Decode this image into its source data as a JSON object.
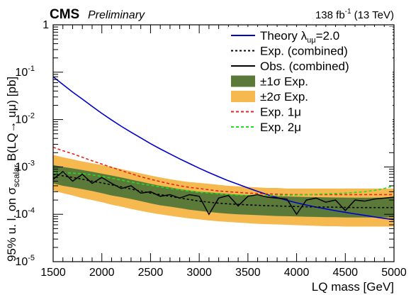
{
  "chart_data": {
    "type": "line",
    "header": {
      "experiment": "CMS",
      "status": "Preliminary",
      "lumi_value": "138 fb",
      "lumi_exp": "-1",
      "lumi_energy": "(13 TeV)"
    },
    "xlabel": "LQ mass [GeV]",
    "ylabel": "95% u. l. on σ",
    "ylabel_sub": "scalar",
    "ylabel_tail": " B(LQ→ uμ) [pb]",
    "xlim": [
      1500,
      5000
    ],
    "ylim": [
      1e-05,
      1
    ],
    "yscale": "log",
    "x_ticks": [
      "1500",
      "2000",
      "2500",
      "3000",
      "3500",
      "4000",
      "4500",
      "5000"
    ],
    "y_ticks": [
      {
        "base": "10",
        "exp": "-5"
      },
      {
        "base": "10",
        "exp": "-4"
      },
      {
        "base": "10",
        "exp": "-3"
      },
      {
        "base": "10",
        "exp": "-2"
      },
      {
        "base": "10",
        "exp": "-1"
      },
      {
        "base": "1",
        "exp": ""
      }
    ],
    "legend": {
      "position": "top-right",
      "entries": [
        {
          "key": "theory",
          "label": "Theory λ",
          "sub": "uμ",
          "tail": "=2.0"
        },
        {
          "key": "exp",
          "label": "Exp. (combined)"
        },
        {
          "key": "obs",
          "label": "Obs. (combined)"
        },
        {
          "key": "band1",
          "label": "±1σ Exp."
        },
        {
          "key": "band2",
          "label": "±2σ Exp."
        },
        {
          "key": "exp1mu",
          "label": "Exp. 1μ"
        },
        {
          "key": "exp2mu",
          "label": "Exp. 2μ"
        }
      ]
    },
    "colors": {
      "theory": "#0000cc",
      "band1": "#5b7a39",
      "band2": "#f5b94f",
      "exp1mu": "#e8231f",
      "exp2mu": "#22dd22",
      "lines": "#000000"
    },
    "x": [
      1500,
      1600,
      1700,
      1800,
      1900,
      2000,
      2100,
      2200,
      2300,
      2400,
      2500,
      2600,
      2700,
      2800,
      2900,
      3000,
      3100,
      3200,
      3300,
      3400,
      3500,
      3600,
      3700,
      3800,
      3900,
      4000,
      4100,
      4200,
      4300,
      4400,
      4500,
      4600,
      4700,
      4800,
      4900,
      5000
    ],
    "series": [
      {
        "key": "theory",
        "values": [
          0.08,
          0.055,
          0.038,
          0.027,
          0.019,
          0.0135,
          0.0098,
          0.0072,
          0.0054,
          0.0041,
          0.0031,
          0.0024,
          0.00188,
          0.00148,
          0.00118,
          0.00094,
          0.00076,
          0.00062,
          0.00051,
          0.00043,
          0.00036,
          0.000305,
          0.00026,
          0.000225,
          0.000197,
          0.000175,
          0.000157,
          0.000142,
          0.00013,
          0.000119,
          0.00011,
          0.000102,
          9.5e-05,
          8.8e-05,
          8.2e-05,
          7.7e-05
        ]
      },
      {
        "key": "exp1mu",
        "values": [
          0.0026,
          0.0022,
          0.0019,
          0.0016,
          0.00135,
          0.00115,
          0.00098,
          0.00084,
          0.00072,
          0.00062,
          0.00055,
          0.00049,
          0.00044,
          0.0004,
          0.00037,
          0.00035,
          0.00033,
          0.00031,
          0.0003,
          0.00029,
          0.00028,
          0.000275,
          0.00027,
          0.000265,
          0.00026,
          0.00026,
          0.00026,
          0.00026,
          0.00026,
          0.00026,
          0.00026,
          0.00026,
          0.00026,
          0.00026,
          0.00026,
          0.00026
        ]
      },
      {
        "key": "exp2mu",
        "values": [
          0.00075,
          0.00075,
          0.00074,
          0.00072,
          0.00068,
          0.00063,
          0.00058,
          0.00053,
          0.00048,
          0.00044,
          0.00041,
          0.00038,
          0.00035,
          0.00033,
          0.00031,
          0.00029,
          0.00028,
          0.00027,
          0.00026,
          0.000255,
          0.00025,
          0.00025,
          0.00025,
          0.00025,
          0.000252,
          0.000255,
          0.00026,
          0.000265,
          0.00027,
          0.000275,
          0.00028,
          0.00029,
          0.0003,
          0.00032,
          0.00035,
          0.0004
        ]
      },
      {
        "key": "exp",
        "values": [
          0.0007,
          0.00065,
          0.0006,
          0.00055,
          0.0005,
          0.00046,
          0.00042,
          0.00038,
          0.00034,
          0.00031,
          0.00028,
          0.00026,
          0.00024,
          0.00022,
          0.000205,
          0.00019,
          0.00018,
          0.000172,
          0.000166,
          0.000162,
          0.000158,
          0.000155,
          0.000152,
          0.00015,
          0.000148,
          0.000146,
          0.000144,
          0.000143,
          0.000142,
          0.000141,
          0.00014,
          0.000139,
          0.000139,
          0.000139,
          0.000139,
          0.000139
        ]
      },
      {
        "key": "obs",
        "values": [
          0.00055,
          0.0008,
          0.0005,
          0.0007,
          0.00045,
          0.0006,
          0.00045,
          0.00035,
          0.0004,
          0.00028,
          0.0003,
          0.00024,
          0.00026,
          0.00022,
          0.00026,
          0.00024,
          0.0001,
          0.00022,
          0.00025,
          0.00015,
          0.00024,
          0.00026,
          0.00023,
          0.00022,
          0.00021,
          0.0001,
          0.0002,
          0.00022,
          0.00018,
          0.0002,
          0.00012,
          0.0002,
          0.00019,
          0.00021,
          0.00022,
          0.00023
        ]
      }
    ],
    "band1_lo": [
      0.00045,
      0.0004,
      0.00037,
      0.00034,
      0.00031,
      0.00028,
      0.00025,
      0.00023,
      0.00021,
      0.00019,
      0.00017,
      0.000155,
      0.000145,
      0.000135,
      0.000125,
      0.000118,
      0.000112,
      0.000107,
      0.000103,
      0.0001,
      9.8e-05,
      9.6e-05,
      9.4e-05,
      9.2e-05,
      9.1e-05,
      9e-05,
      8.9e-05,
      8.8e-05,
      8.7e-05,
      8.7e-05,
      8.6e-05,
      8.6e-05,
      8.6e-05,
      8.6e-05,
      8.6e-05,
      8.6e-05
    ],
    "band1_hi": [
      0.0011,
      0.001,
      0.00093,
      0.00086,
      0.00079,
      0.00072,
      0.00066,
      0.0006,
      0.00054,
      0.00049,
      0.00044,
      0.0004,
      0.00037,
      0.00034,
      0.00032,
      0.0003,
      0.00029,
      0.00028,
      0.00027,
      0.00026,
      0.000255,
      0.00025,
      0.000245,
      0.00024,
      0.000238,
      0.000235,
      0.000232,
      0.00023,
      0.000228,
      0.000226,
      0.000225,
      0.000224,
      0.000224,
      0.000224,
      0.000224,
      0.000224
    ],
    "band2_lo": [
      0.00032,
      0.00028,
      0.00025,
      0.00022,
      0.0002,
      0.00018,
      0.00016,
      0.000145,
      0.00013,
      0.000118,
      0.000108,
      0.0001,
      9.3e-05,
      8.7e-05,
      8.2e-05,
      7.8e-05,
      7.4e-05,
      7.1e-05,
      6.9e-05,
      6.7e-05,
      6.5e-05,
      6.3e-05,
      6.2e-05,
      6.1e-05,
      6e-05,
      5.9e-05,
      5.8e-05,
      5.7e-05,
      5.6e-05,
      5.6e-05,
      5.5e-05,
      5.5e-05,
      5.5e-05,
      5.5e-05,
      5.5e-05,
      5.5e-05
    ],
    "band2_hi": [
      0.0018,
      0.0016,
      0.00145,
      0.0013,
      0.0012,
      0.0011,
      0.001,
      0.0009,
      0.00081,
      0.00073,
      0.00066,
      0.0006,
      0.00055,
      0.00051,
      0.00048,
      0.00046,
      0.00044,
      0.00042,
      0.0004,
      0.00039,
      0.00038,
      0.00037,
      0.00036,
      0.00036,
      0.00035,
      0.00035,
      0.00035,
      0.00035,
      0.00035,
      0.00035,
      0.00035,
      0.00035,
      0.00035,
      0.00035,
      0.00035,
      0.00035
    ]
  }
}
